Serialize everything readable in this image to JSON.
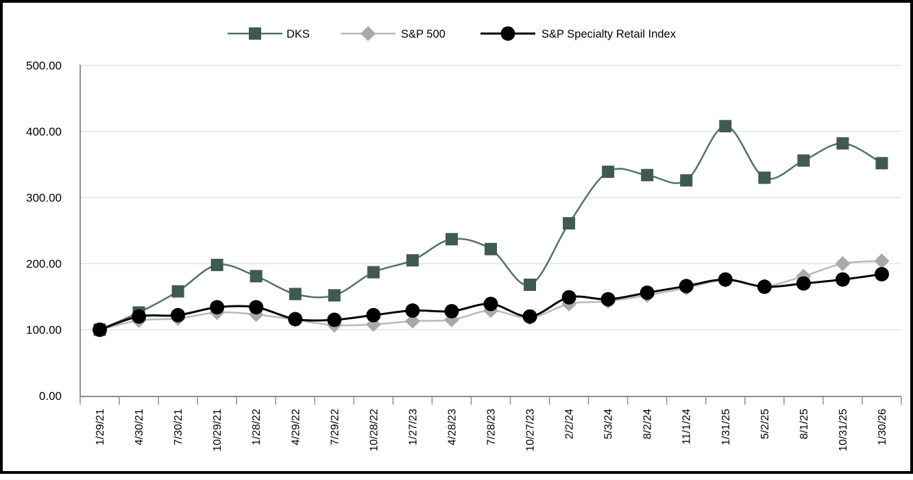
{
  "chart_data": {
    "type": "line",
    "title": "",
    "xlabel": "",
    "ylabel": "",
    "ylim": [
      0,
      500
    ],
    "ytick_step": 100,
    "ytick_labels": [
      "0.00",
      "100.00",
      "200.00",
      "300.00",
      "400.00",
      "500.00"
    ],
    "grid": true,
    "legend_position": "top",
    "categories": [
      "1/29/21",
      "4/30/21",
      "7/30/21",
      "10/29/21",
      "1/28/22",
      "4/29/22",
      "7/29/22",
      "10/28/22",
      "1/27/23",
      "4/28/23",
      "7/28/23",
      "10/27/23",
      "2/2/24",
      "5/3/24",
      "8/2/24",
      "11/1/24",
      "1/31/25",
      "5/2/25",
      "8/1/25",
      "10/31/25",
      "1/30/26"
    ],
    "series": [
      {
        "name": "DKS",
        "marker": "square",
        "line_color": "#527065",
        "marker_color": "#3f5a53",
        "line_width": 2.5,
        "values": [
          100,
          126,
          158,
          198,
          181,
          154,
          152,
          187,
          205,
          237,
          222,
          168,
          261,
          339,
          334,
          326,
          408,
          330,
          356,
          382,
          352
        ]
      },
      {
        "name": "S&P 500",
        "marker": "diamond",
        "line_color": "#b9b9b9",
        "marker_color": "#a9a9a9",
        "line_width": 2.5,
        "values": [
          100,
          114,
          117,
          126,
          123,
          115,
          107,
          108,
          113,
          115,
          129,
          118,
          139,
          143,
          152,
          163,
          175,
          166,
          181,
          200,
          204
        ]
      },
      {
        "name": "S&P Specialty Retail Index",
        "marker": "circle",
        "line_color": "#000000",
        "marker_color": "#000000",
        "line_width": 3,
        "values": [
          100,
          120,
          122,
          134,
          134,
          116,
          115,
          122,
          129,
          128,
          139,
          120,
          149,
          146,
          156,
          166,
          176,
          165,
          170,
          176,
          184
        ]
      }
    ],
    "colors": {
      "gridline": "#e4e4e4",
      "axis": "#8e8e8e",
      "text": "#000000",
      "frame_border": "#000000",
      "background": "#ffffff"
    }
  }
}
